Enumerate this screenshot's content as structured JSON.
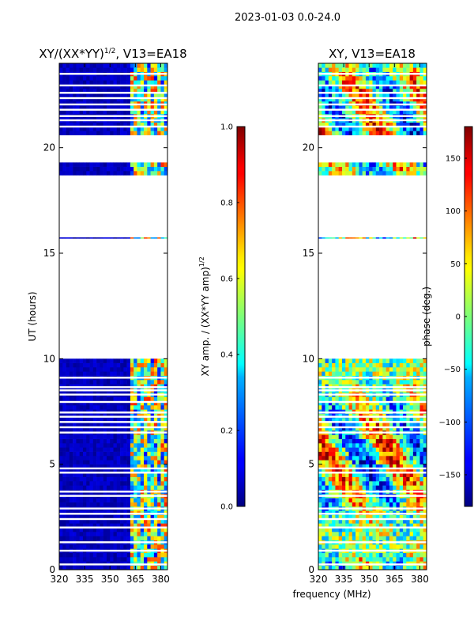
{
  "figure": {
    "suptitle": "2023-01-03 0.0-24.0",
    "xlabel_shared": "frequency (MHz)"
  },
  "chart_data": [
    {
      "type": "heatmap",
      "title": "XY/(XX*YY)",
      "title_sup": "1/2",
      "title_suffix": ", V13=EA18",
      "xlabel": "",
      "ylabel": "UT (hours)",
      "xlim": [
        320,
        384
      ],
      "ylim": [
        0,
        24
      ],
      "xticks": [
        320,
        335,
        350,
        365,
        380
      ],
      "yticks": [
        0,
        5,
        10,
        15,
        20
      ],
      "colormap": "jet",
      "colorbar": {
        "label": "XY amp. / (XX*YY amp)",
        "label_sup": "1/2",
        "range": [
          0.0,
          1.0
        ],
        "ticks": [
          "0.0",
          "0.2",
          "0.4",
          "0.6",
          "0.8",
          "1.0"
        ],
        "tick_values": [
          0.0,
          0.2,
          0.4,
          0.6,
          0.8,
          1.0
        ]
      },
      "data_bands_hours": [
        [
          0.0,
          10.0
        ],
        [
          15.7,
          15.75
        ],
        [
          18.7,
          19.3
        ],
        [
          20.6,
          24.0
        ]
      ],
      "gap_hours": [
        [
          10.0,
          15.7
        ],
        [
          15.75,
          18.7
        ],
        [
          19.3,
          20.6
        ]
      ],
      "row_gaps_hours": [
        0.25,
        0.9,
        1.3,
        2.0,
        2.4,
        2.65,
        2.9,
        3.5,
        3.7,
        4.6,
        4.8,
        6.5,
        6.75,
        7.0,
        7.25,
        7.45,
        7.95,
        8.3,
        8.5,
        8.65,
        9.1,
        21.0,
        21.3,
        21.5,
        21.8,
        22.05,
        22.35,
        22.6,
        22.95,
        23.5
      ],
      "note": "Low values (~0.05) across most of band; elevated values (0.3-0.9) in 360-384 MHz channels"
    },
    {
      "type": "heatmap",
      "title": "XY, V13=EA18",
      "xlabel": "",
      "ylabel": "",
      "xlim": [
        320,
        384
      ],
      "ylim": [
        0,
        24
      ],
      "xticks": [
        320,
        335,
        350,
        365,
        380
      ],
      "yticks": [
        0,
        5,
        10,
        15,
        20
      ],
      "colormap": "jet",
      "colorbar": {
        "label": "phase (deg.)",
        "range": [
          -180,
          180
        ],
        "ticks": [
          "−150",
          "−100",
          "−50",
          "0",
          "50",
          "100",
          "150"
        ],
        "tick_values": [
          -150,
          -100,
          -50,
          0,
          50,
          100,
          150
        ]
      },
      "data_bands_hours": [
        [
          0.0,
          10.0
        ],
        [
          15.7,
          15.75
        ],
        [
          18.7,
          19.3
        ],
        [
          20.6,
          24.0
        ]
      ],
      "gap_hours": [
        [
          10.0,
          15.7
        ],
        [
          15.75,
          18.7
        ],
        [
          19.3,
          20.6
        ]
      ],
      "row_gaps_hours": [
        0.25,
        0.9,
        1.3,
        2.0,
        2.4,
        2.65,
        2.9,
        3.5,
        3.7,
        4.6,
        4.8,
        6.5,
        6.75,
        7.0,
        7.25,
        7.45,
        7.95,
        8.3,
        8.5,
        8.65,
        9.1,
        21.0,
        21.3,
        21.5,
        21.8,
        22.05,
        22.35,
        22.6,
        22.95,
        23.5
      ],
      "note": "Phase varies broadly across full range (-180 to 180 deg)"
    }
  ]
}
